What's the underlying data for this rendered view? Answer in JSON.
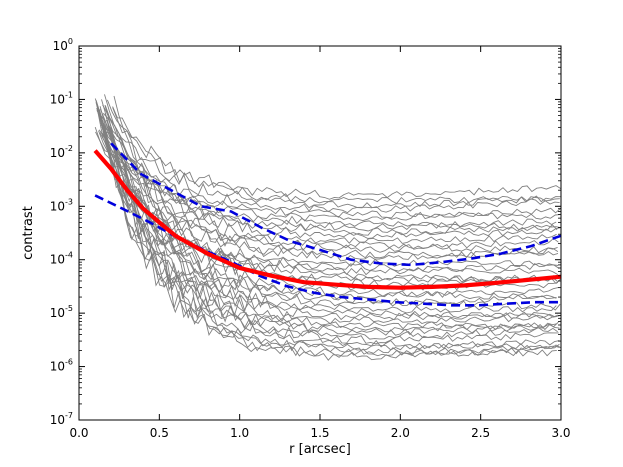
{
  "chart_data": {
    "type": "line",
    "title": "",
    "xlabel": "r [arcsec]",
    "ylabel": "contrast",
    "xlim": [
      0.0,
      3.0
    ],
    "ylim": [
      1e-07,
      1
    ],
    "yscale": "log",
    "grid": false,
    "legend": "none",
    "x_ticks": [
      {
        "value": 0.0,
        "label": "0.0"
      },
      {
        "value": 0.5,
        "label": "0.5"
      },
      {
        "value": 1.0,
        "label": "1.0"
      },
      {
        "value": 1.5,
        "label": "1.5"
      },
      {
        "value": 2.0,
        "label": "2.0"
      },
      {
        "value": 2.5,
        "label": "2.5"
      },
      {
        "value": 3.0,
        "label": "3.0"
      }
    ],
    "y_ticks": [
      {
        "value": 1e-07,
        "base": "10",
        "exp": "-7"
      },
      {
        "value": 1e-06,
        "base": "10",
        "exp": "-6"
      },
      {
        "value": 1e-05,
        "base": "10",
        "exp": "-5"
      },
      {
        "value": 0.0001,
        "base": "10",
        "exp": "-4"
      },
      {
        "value": 0.001,
        "base": "10",
        "exp": "-3"
      },
      {
        "value": 0.01,
        "base": "10",
        "exp": "-2"
      },
      {
        "value": 0.1,
        "base": "10",
        "exp": "-1"
      },
      {
        "value": 1,
        "base": "10",
        "exp": "0"
      }
    ],
    "colors": {
      "individual": "#808080",
      "median": "#ff0000",
      "percentile": "#0000dd"
    },
    "x": [
      0.1,
      0.2,
      0.3,
      0.4,
      0.5,
      0.6,
      0.8,
      1.0,
      1.2,
      1.4,
      1.6,
      1.8,
      2.0,
      2.2,
      2.4,
      2.6,
      2.8,
      3.0
    ],
    "median": [
      0.011,
      0.005,
      0.002,
      0.0009,
      0.0005,
      0.00028,
      0.00013,
      7e-05,
      5e-05,
      3.8e-05,
      3.4e-05,
      3.1e-05,
      3e-05,
      3.1e-05,
      3.3e-05,
      3.7e-05,
      4.2e-05,
      4.8e-05
    ],
    "upper_dashed": {
      "x_start": 0.2,
      "values": [
        0.015,
        0.004,
        0.002,
        0.001,
        0.0008,
        0.0004,
        0.00022,
        0.00015,
        0.0001,
        8.5e-05,
        8e-05,
        9e-05,
        0.000105,
        0.00013,
        0.00018,
        0.00028
      ]
    },
    "lower_dashed": {
      "x_start": 0.1,
      "values": [
        0.0016,
        0.0009,
        0.0005,
        0.00026,
        0.00015,
        9e-05,
        5e-05,
        3.2e-05,
        2.4e-05,
        2e-05,
        1.8e-05,
        1.6e-05,
        1.5e-05,
        1.4e-05,
        1.4e-05,
        1.5e-05,
        1.6e-05,
        1.6e-05
      ]
    },
    "individual_curves": {
      "x_start": 0.1,
      "count": 40,
      "log_low": -6.8,
      "log_high": -2.5,
      "peak_high": 0.12,
      "peak_low": 0.02,
      "floor_high": 0.0015,
      "floor_low": 1.4e-06
    }
  }
}
